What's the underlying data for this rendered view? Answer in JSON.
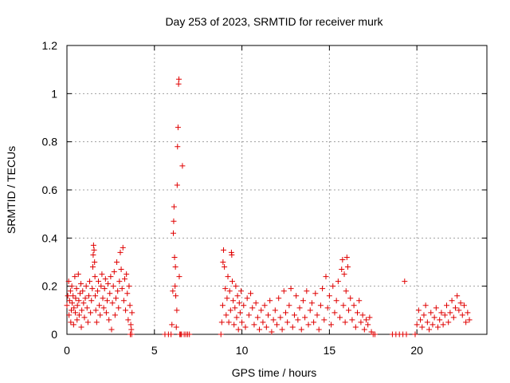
{
  "chart_data": {
    "type": "scatter",
    "title": "Day 253 of 2023, SRMTID for receiver murk",
    "xlabel": "GPS time / hours",
    "ylabel": "SRMTID / TECUs",
    "xlim": [
      0,
      24
    ],
    "ylim": [
      0,
      1.2
    ],
    "xticks": [
      0,
      5,
      10,
      15,
      20
    ],
    "xtick_labels": [
      "0",
      "5",
      "10",
      "15",
      "20"
    ],
    "yticks": [
      0,
      0.2,
      0.4,
      0.6,
      0.8,
      1,
      1.2
    ],
    "ytick_labels": [
      "0",
      "0.2",
      "0.4",
      "0.6",
      "0.8",
      "1",
      "1.2"
    ],
    "grid": true,
    "marker": "+",
    "marker_color": "#e00000",
    "series": [
      {
        "name": "SRMTID",
        "points": [
          [
            0.0,
            0.12
          ],
          [
            0.05,
            0.16
          ],
          [
            0.1,
            0.22
          ],
          [
            0.12,
            0.08
          ],
          [
            0.15,
            0.14
          ],
          [
            0.2,
            0.18
          ],
          [
            0.22,
            0.05
          ],
          [
            0.25,
            0.1
          ],
          [
            0.28,
            0.2
          ],
          [
            0.3,
            0.13
          ],
          [
            0.35,
            0.16
          ],
          [
            0.38,
            0.04
          ],
          [
            0.4,
            0.11
          ],
          [
            0.45,
            0.24
          ],
          [
            0.48,
            0.09
          ],
          [
            0.5,
            0.15
          ],
          [
            0.55,
            0.19
          ],
          [
            0.58,
            0.06
          ],
          [
            0.6,
            0.12
          ],
          [
            0.65,
            0.25
          ],
          [
            0.68,
            0.14
          ],
          [
            0.7,
            0.08
          ],
          [
            0.75,
            0.17
          ],
          [
            0.8,
            0.21
          ],
          [
            0.82,
            0.03
          ],
          [
            0.85,
            0.1
          ],
          [
            0.9,
            0.18
          ],
          [
            0.95,
            0.13
          ],
          [
            1.0,
            0.07
          ],
          [
            1.05,
            0.15
          ],
          [
            1.1,
            0.2
          ],
          [
            1.15,
            0.11
          ],
          [
            1.2,
            0.05
          ],
          [
            1.25,
            0.16
          ],
          [
            1.3,
            0.22
          ],
          [
            1.35,
            0.09
          ],
          [
            1.4,
            0.14
          ],
          [
            1.45,
            0.19
          ],
          [
            1.48,
            0.28
          ],
          [
            1.5,
            0.33
          ],
          [
            1.52,
            0.37
          ],
          [
            1.55,
            0.35
          ],
          [
            1.58,
            0.3
          ],
          [
            1.6,
            0.24
          ],
          [
            1.62,
            0.16
          ],
          [
            1.65,
            0.1
          ],
          [
            1.7,
            0.05
          ],
          [
            1.75,
            0.18
          ],
          [
            1.8,
            0.22
          ],
          [
            1.85,
            0.12
          ],
          [
            1.9,
            0.08
          ],
          [
            1.95,
            0.2
          ],
          [
            2.0,
            0.25
          ],
          [
            2.05,
            0.15
          ],
          [
            2.1,
            0.11
          ],
          [
            2.15,
            0.19
          ],
          [
            2.2,
            0.23
          ],
          [
            2.25,
            0.09
          ],
          [
            2.3,
            0.14
          ],
          [
            2.35,
            0.21
          ],
          [
            2.4,
            0.06
          ],
          [
            2.45,
            0.17
          ],
          [
            2.5,
            0.24
          ],
          [
            2.55,
            0.02
          ],
          [
            2.6,
            0.13
          ],
          [
            2.65,
            0.2
          ],
          [
            2.7,
            0.26
          ],
          [
            2.75,
            0.08
          ],
          [
            2.8,
            0.15
          ],
          [
            2.85,
            0.3
          ],
          [
            2.9,
            0.18
          ],
          [
            2.95,
            0.11
          ],
          [
            3.0,
            0.22
          ],
          [
            3.05,
            0.34
          ],
          [
            3.1,
            0.27
          ],
          [
            3.15,
            0.19
          ],
          [
            3.2,
            0.36
          ],
          [
            3.25,
            0.14
          ],
          [
            3.3,
            0.23
          ],
          [
            3.35,
            0.1
          ],
          [
            3.4,
            0.25
          ],
          [
            3.45,
            0.17
          ],
          [
            3.5,
            0.06
          ],
          [
            3.55,
            0.2
          ],
          [
            3.6,
            0.12
          ],
          [
            3.62,
            0.0
          ],
          [
            3.65,
            0.04
          ],
          [
            3.68,
            0.02
          ],
          [
            3.7,
            0.0
          ],
          [
            3.72,
            0.09
          ],
          [
            5.6,
            0.0
          ],
          [
            5.8,
            0.0
          ],
          [
            5.95,
            0.0
          ],
          [
            6.0,
            0.04
          ],
          [
            6.05,
            0.18
          ],
          [
            6.08,
            0.42
          ],
          [
            6.1,
            0.47
          ],
          [
            6.12,
            0.53
          ],
          [
            6.15,
            0.32
          ],
          [
            6.18,
            0.2
          ],
          [
            6.2,
            0.28
          ],
          [
            6.22,
            0.16
          ],
          [
            6.25,
            0.03
          ],
          [
            6.28,
            0.1
          ],
          [
            6.3,
            0.62
          ],
          [
            6.32,
            0.78
          ],
          [
            6.35,
            0.86
          ],
          [
            6.38,
            1.04
          ],
          [
            6.4,
            1.06
          ],
          [
            6.42,
            0.24
          ],
          [
            6.45,
            0.0
          ],
          [
            6.5,
            0.0
          ],
          [
            6.55,
            0.0
          ],
          [
            6.6,
            0.7
          ],
          [
            6.7,
            0.0
          ],
          [
            6.8,
            0.0
          ],
          [
            6.9,
            0.0
          ],
          [
            7.0,
            0.0
          ],
          [
            8.8,
            0.0
          ],
          [
            8.85,
            0.05
          ],
          [
            8.9,
            0.12
          ],
          [
            8.92,
            0.3
          ],
          [
            8.95,
            0.35
          ],
          [
            9.0,
            0.28
          ],
          [
            9.05,
            0.19
          ],
          [
            9.1,
            0.08
          ],
          [
            9.15,
            0.15
          ],
          [
            9.2,
            0.24
          ],
          [
            9.25,
            0.05
          ],
          [
            9.3,
            0.18
          ],
          [
            9.35,
            0.1
          ],
          [
            9.4,
            0.34
          ],
          [
            9.42,
            0.33
          ],
          [
            9.45,
            0.22
          ],
          [
            9.5,
            0.14
          ],
          [
            9.55,
            0.04
          ],
          [
            9.6,
            0.11
          ],
          [
            9.65,
            0.2
          ],
          [
            9.7,
            0.07
          ],
          [
            9.75,
            0.16
          ],
          [
            9.8,
            0.02
          ],
          [
            9.85,
            0.13
          ],
          [
            9.9,
            0.09
          ],
          [
            9.95,
            0.18
          ],
          [
            10.0,
            0.05
          ],
          [
            10.1,
            0.12
          ],
          [
            10.2,
            0.03
          ],
          [
            10.3,
            0.15
          ],
          [
            10.4,
            0.08
          ],
          [
            10.5,
            0.17
          ],
          [
            10.6,
            0.11
          ],
          [
            10.7,
            0.04
          ],
          [
            10.8,
            0.13
          ],
          [
            10.9,
            0.07
          ],
          [
            11.0,
            0.02
          ],
          [
            11.1,
            0.1
          ],
          [
            11.2,
            0.05
          ],
          [
            11.3,
            0.12
          ],
          [
            11.4,
            0.03
          ],
          [
            11.5,
            0.08
          ],
          [
            11.6,
            0.14
          ],
          [
            11.7,
            0.01
          ],
          [
            11.8,
            0.06
          ],
          [
            11.9,
            0.1
          ],
          [
            12.0,
            0.04
          ],
          [
            12.1,
            0.15
          ],
          [
            12.2,
            0.07
          ],
          [
            12.3,
            0.02
          ],
          [
            12.4,
            0.18
          ],
          [
            12.5,
            0.09
          ],
          [
            12.6,
            0.05
          ],
          [
            12.7,
            0.12
          ],
          [
            12.8,
            0.19
          ],
          [
            12.9,
            0.03
          ],
          [
            13.0,
            0.08
          ],
          [
            13.1,
            0.16
          ],
          [
            13.2,
            0.06
          ],
          [
            13.3,
            0.11
          ],
          [
            13.4,
            0.02
          ],
          [
            13.5,
            0.14
          ],
          [
            13.6,
            0.07
          ],
          [
            13.7,
            0.18
          ],
          [
            13.8,
            0.04
          ],
          [
            13.9,
            0.1
          ],
          [
            14.0,
            0.13
          ],
          [
            14.1,
            0.05
          ],
          [
            14.2,
            0.17
          ],
          [
            14.3,
            0.08
          ],
          [
            14.4,
            0.02
          ],
          [
            14.5,
            0.12
          ],
          [
            14.6,
            0.19
          ],
          [
            14.7,
            0.06
          ],
          [
            14.8,
            0.24
          ],
          [
            14.9,
            0.11
          ],
          [
            15.0,
            0.16
          ],
          [
            15.1,
            0.04
          ],
          [
            15.2,
            0.2
          ],
          [
            15.3,
            0.09
          ],
          [
            15.4,
            0.14
          ],
          [
            15.5,
            0.22
          ],
          [
            15.6,
            0.07
          ],
          [
            15.7,
            0.27
          ],
          [
            15.75,
            0.31
          ],
          [
            15.8,
            0.12
          ],
          [
            15.85,
            0.25
          ],
          [
            15.9,
            0.05
          ],
          [
            15.95,
            0.18
          ],
          [
            16.0,
            0.32
          ],
          [
            16.05,
            0.28
          ],
          [
            16.1,
            0.1
          ],
          [
            16.2,
            0.15
          ],
          [
            16.3,
            0.06
          ],
          [
            16.4,
            0.12
          ],
          [
            16.5,
            0.03
          ],
          [
            16.6,
            0.09
          ],
          [
            16.7,
            0.14
          ],
          [
            16.8,
            0.05
          ],
          [
            16.9,
            0.08
          ],
          [
            17.0,
            0.02
          ],
          [
            17.1,
            0.06
          ],
          [
            17.2,
            0.04
          ],
          [
            17.3,
            0.07
          ],
          [
            17.4,
            0.01
          ],
          [
            17.5,
            0.0
          ],
          [
            17.6,
            0.0
          ],
          [
            18.6,
            0.0
          ],
          [
            18.8,
            0.0
          ],
          [
            19.0,
            0.0
          ],
          [
            19.2,
            0.0
          ],
          [
            19.3,
            0.22
          ],
          [
            19.4,
            0.0
          ],
          [
            19.9,
            0.0
          ],
          [
            20.0,
            0.04
          ],
          [
            20.1,
            0.1
          ],
          [
            20.2,
            0.06
          ],
          [
            20.3,
            0.03
          ],
          [
            20.4,
            0.08
          ],
          [
            20.5,
            0.12
          ],
          [
            20.6,
            0.05
          ],
          [
            20.7,
            0.02
          ],
          [
            20.8,
            0.09
          ],
          [
            20.9,
            0.04
          ],
          [
            21.0,
            0.07
          ],
          [
            21.1,
            0.11
          ],
          [
            21.2,
            0.03
          ],
          [
            21.3,
            0.06
          ],
          [
            21.4,
            0.09
          ],
          [
            21.5,
            0.04
          ],
          [
            21.6,
            0.08
          ],
          [
            21.7,
            0.12
          ],
          [
            21.8,
            0.05
          ],
          [
            21.9,
            0.09
          ],
          [
            22.0,
            0.14
          ],
          [
            22.1,
            0.07
          ],
          [
            22.2,
            0.11
          ],
          [
            22.3,
            0.16
          ],
          [
            22.4,
            0.1
          ],
          [
            22.5,
            0.13
          ],
          [
            22.6,
            0.08
          ],
          [
            22.7,
            0.12
          ],
          [
            22.8,
            0.05
          ],
          [
            22.9,
            0.09
          ],
          [
            23.0,
            0.06
          ]
        ]
      }
    ]
  }
}
